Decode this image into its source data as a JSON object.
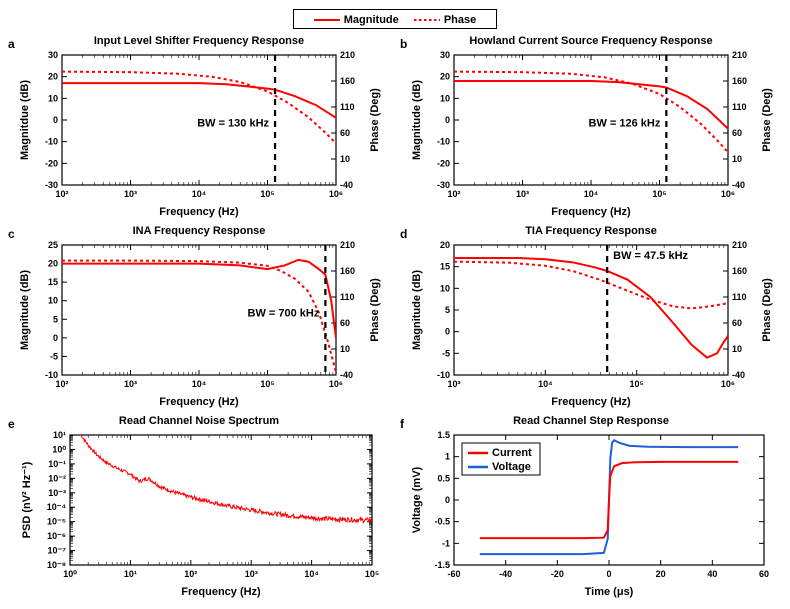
{
  "global_legend": {
    "magnitude": "Magnitude",
    "phase": "Phase"
  },
  "colors": {
    "magnitude": "#ff0000",
    "phase": "#ff0000",
    "voltage": "#1f5fd8",
    "current": "#ff0000",
    "axis": "#000000",
    "bg": "#ffffff"
  },
  "lineStyle": {
    "magnitude_dash": "",
    "phase_dash": "3,3",
    "bw_marker_dash": "6,5",
    "line_width": 2,
    "bw_marker_width": 2.2
  },
  "panels": {
    "a": {
      "letter": "a",
      "title": "Input Level Shifter Frequency Response",
      "type": "bode",
      "xlabel": "Frequency (Hz)",
      "ylabel_left": "Magnitdue (dB)",
      "ylabel_right": "Phase (Deg)",
      "x_decades": [
        2,
        3,
        4,
        5,
        6
      ],
      "yL": {
        "min": -30,
        "max": 30,
        "step": 10
      },
      "yR": {
        "min": -40,
        "max": 210,
        "step": 50
      },
      "bw_label": "BW = 130 kHz",
      "bw_freq_decade": 5.11,
      "magnitude": [
        {
          "d": 2.0,
          "v": 17
        },
        {
          "d": 3.0,
          "v": 17
        },
        {
          "d": 4.0,
          "v": 17
        },
        {
          "d": 4.4,
          "v": 16.5
        },
        {
          "d": 4.7,
          "v": 15.5
        },
        {
          "d": 5.0,
          "v": 14.5
        },
        {
          "d": 5.11,
          "v": 14
        },
        {
          "d": 5.4,
          "v": 11
        },
        {
          "d": 5.7,
          "v": 7
        },
        {
          "d": 6.0,
          "v": 1
        }
      ],
      "phase": [
        {
          "d": 2.0,
          "v": 178
        },
        {
          "d": 3.0,
          "v": 177
        },
        {
          "d": 3.7,
          "v": 174
        },
        {
          "d": 4.2,
          "v": 168
        },
        {
          "d": 4.6,
          "v": 158
        },
        {
          "d": 5.0,
          "v": 140
        },
        {
          "d": 5.3,
          "v": 118
        },
        {
          "d": 5.6,
          "v": 90
        },
        {
          "d": 5.85,
          "v": 60
        },
        {
          "d": 6.0,
          "v": 40
        }
      ]
    },
    "b": {
      "letter": "b",
      "title": "Howland Current Source Frequency Response",
      "type": "bode",
      "xlabel": "Frequency (Hz)",
      "ylabel_left": "Magnitude (dB)",
      "ylabel_right": "Phase (Deg)",
      "x_decades": [
        2,
        3,
        4,
        5,
        6
      ],
      "yL": {
        "min": -30,
        "max": 30,
        "step": 10
      },
      "yR": {
        "min": -40,
        "max": 210,
        "step": 50
      },
      "bw_label": "BW = 126 kHz",
      "bw_freq_decade": 5.1,
      "magnitude": [
        {
          "d": 2.0,
          "v": 18
        },
        {
          "d": 3.0,
          "v": 18
        },
        {
          "d": 4.0,
          "v": 18
        },
        {
          "d": 4.4,
          "v": 17.5
        },
        {
          "d": 4.7,
          "v": 16.5
        },
        {
          "d": 5.0,
          "v": 15.5
        },
        {
          "d": 5.1,
          "v": 15
        },
        {
          "d": 5.4,
          "v": 11
        },
        {
          "d": 5.7,
          "v": 5
        },
        {
          "d": 6.0,
          "v": -4
        }
      ],
      "phase": [
        {
          "d": 2.0,
          "v": 178
        },
        {
          "d": 3.0,
          "v": 177
        },
        {
          "d": 3.7,
          "v": 174
        },
        {
          "d": 4.2,
          "v": 167
        },
        {
          "d": 4.6,
          "v": 155
        },
        {
          "d": 5.0,
          "v": 135
        },
        {
          "d": 5.3,
          "v": 110
        },
        {
          "d": 5.6,
          "v": 78
        },
        {
          "d": 5.85,
          "v": 45
        },
        {
          "d": 6.0,
          "v": 23
        }
      ]
    },
    "c": {
      "letter": "c",
      "title": "INA Frequency Response",
      "type": "bode",
      "xlabel": "Frequency (Hz)",
      "ylabel_left": "Magnitude (dB)",
      "ylabel_right": "Phase (Deg)",
      "x_decades": [
        2,
        3,
        4,
        5,
        6
      ],
      "yL": {
        "min": -10,
        "max": 25,
        "step": 5
      },
      "yR": {
        "min": -40,
        "max": 210,
        "step": 50
      },
      "bw_label": "BW = 700 kHz",
      "bw_freq_decade": 5.845,
      "magnitude": [
        {
          "d": 2.0,
          "v": 20
        },
        {
          "d": 3.0,
          "v": 20
        },
        {
          "d": 4.0,
          "v": 20
        },
        {
          "d": 4.6,
          "v": 19.5
        },
        {
          "d": 5.0,
          "v": 18.5
        },
        {
          "d": 5.25,
          "v": 19.5
        },
        {
          "d": 5.45,
          "v": 21
        },
        {
          "d": 5.6,
          "v": 20.5
        },
        {
          "d": 5.75,
          "v": 18.5
        },
        {
          "d": 5.845,
          "v": 17
        },
        {
          "d": 5.93,
          "v": 10
        },
        {
          "d": 6.0,
          "v": 0
        }
      ],
      "phase": [
        {
          "d": 2.0,
          "v": 180
        },
        {
          "d": 3.0,
          "v": 180
        },
        {
          "d": 4.0,
          "v": 179
        },
        {
          "d": 4.6,
          "v": 176
        },
        {
          "d": 5.0,
          "v": 170
        },
        {
          "d": 5.2,
          "v": 160
        },
        {
          "d": 5.4,
          "v": 145
        },
        {
          "d": 5.6,
          "v": 120
        },
        {
          "d": 5.75,
          "v": 80
        },
        {
          "d": 5.88,
          "v": 25
        },
        {
          "d": 6.0,
          "v": -35
        }
      ]
    },
    "d": {
      "letter": "d",
      "title": "TIA Frequency Response",
      "type": "bode",
      "xlabel": "Frequency (Hz)",
      "ylabel_left": "Magnitude (dB)",
      "ylabel_right": "Phase (Deg)",
      "x_decades": [
        3,
        4,
        5,
        6
      ],
      "yL": {
        "min": -10,
        "max": 20,
        "step": 5
      },
      "yR": {
        "min": -40,
        "max": 210,
        "step": 50
      },
      "bw_label": "BW = 47.5 kHz",
      "bw_freq_decade": 4.677,
      "magnitude": [
        {
          "d": 3.0,
          "v": 17
        },
        {
          "d": 3.7,
          "v": 17
        },
        {
          "d": 4.0,
          "v": 16.7
        },
        {
          "d": 4.3,
          "v": 16
        },
        {
          "d": 4.55,
          "v": 14.8
        },
        {
          "d": 4.677,
          "v": 14
        },
        {
          "d": 4.9,
          "v": 12
        },
        {
          "d": 5.15,
          "v": 8
        },
        {
          "d": 5.4,
          "v": 2
        },
        {
          "d": 5.6,
          "v": -3
        },
        {
          "d": 5.77,
          "v": -6
        },
        {
          "d": 5.88,
          "v": -5
        },
        {
          "d": 5.95,
          "v": -2.5
        },
        {
          "d": 6.0,
          "v": -1
        }
      ],
      "phase": [
        {
          "d": 3.0,
          "v": 178
        },
        {
          "d": 3.6,
          "v": 176
        },
        {
          "d": 4.0,
          "v": 170
        },
        {
          "d": 4.3,
          "v": 160
        },
        {
          "d": 4.6,
          "v": 143
        },
        {
          "d": 4.9,
          "v": 122
        },
        {
          "d": 5.15,
          "v": 105
        },
        {
          "d": 5.4,
          "v": 92
        },
        {
          "d": 5.6,
          "v": 88
        },
        {
          "d": 5.8,
          "v": 92
        },
        {
          "d": 6.0,
          "v": 98
        }
      ]
    },
    "e": {
      "letter": "e",
      "title": "Read Channel Noise Spectrum",
      "type": "psd",
      "xlabel": "Frequency (Hz)",
      "ylabel_left": "PSD (nV² Hz⁻¹)",
      "x_decades": [
        0,
        1,
        2,
        3,
        4,
        5
      ],
      "y_exp": {
        "min": -8,
        "max": 1,
        "step": 1
      },
      "noise_amp_decades": 0.35,
      "curve": [
        {
          "d": 0.18,
          "e": 1.0
        },
        {
          "d": 0.3,
          "e": 0.3
        },
        {
          "d": 0.45,
          "e": -0.4
        },
        {
          "d": 0.6,
          "e": -0.9
        },
        {
          "d": 0.8,
          "e": -1.35
        },
        {
          "d": 1.0,
          "e": -1.7
        },
        {
          "d": 1.15,
          "e": -2.2
        },
        {
          "d": 1.3,
          "e": -2.0
        },
        {
          "d": 1.5,
          "e": -2.6
        },
        {
          "d": 1.75,
          "e": -3.0
        },
        {
          "d": 2.0,
          "e": -3.3
        },
        {
          "d": 2.3,
          "e": -3.6
        },
        {
          "d": 2.6,
          "e": -3.9
        },
        {
          "d": 3.0,
          "e": -4.2
        },
        {
          "d": 3.4,
          "e": -4.45
        },
        {
          "d": 3.8,
          "e": -4.65
        },
        {
          "d": 4.2,
          "e": -4.8
        },
        {
          "d": 4.6,
          "e": -4.85
        },
        {
          "d": 4.85,
          "e": -4.9
        },
        {
          "d": 5.0,
          "e": -4.9
        }
      ]
    },
    "f": {
      "letter": "f",
      "title": "Read Channel Step Response",
      "type": "step",
      "xlabel": "Time (μs)",
      "ylabel_left": "Voltage (mV)",
      "x": {
        "min": -60,
        "max": 60,
        "step": 20
      },
      "y": {
        "min": -1.5,
        "max": 1.5,
        "step": 0.5
      },
      "legend": {
        "current": "Current",
        "voltage": "Voltage"
      },
      "current": [
        {
          "t": -50,
          "v": -0.88
        },
        {
          "t": -30,
          "v": -0.88
        },
        {
          "t": -10,
          "v": -0.88
        },
        {
          "t": -2,
          "v": -0.87
        },
        {
          "t": -0.5,
          "v": -0.7
        },
        {
          "t": 0,
          "v": 0
        },
        {
          "t": 0.5,
          "v": 0.55
        },
        {
          "t": 2,
          "v": 0.78
        },
        {
          "t": 5,
          "v": 0.85
        },
        {
          "t": 10,
          "v": 0.87
        },
        {
          "t": 20,
          "v": 0.88
        },
        {
          "t": 50,
          "v": 0.88
        }
      ],
      "voltage": [
        {
          "t": -50,
          "v": -1.25
        },
        {
          "t": -30,
          "v": -1.25
        },
        {
          "t": -10,
          "v": -1.25
        },
        {
          "t": -2,
          "v": -1.22
        },
        {
          "t": -0.5,
          "v": -0.9
        },
        {
          "t": 0,
          "v": 0
        },
        {
          "t": 0.5,
          "v": 0.95
        },
        {
          "t": 1.2,
          "v": 1.32
        },
        {
          "t": 2,
          "v": 1.38
        },
        {
          "t": 4,
          "v": 1.32
        },
        {
          "t": 8,
          "v": 1.25
        },
        {
          "t": 15,
          "v": 1.23
        },
        {
          "t": 30,
          "v": 1.22
        },
        {
          "t": 50,
          "v": 1.22
        }
      ]
    }
  }
}
